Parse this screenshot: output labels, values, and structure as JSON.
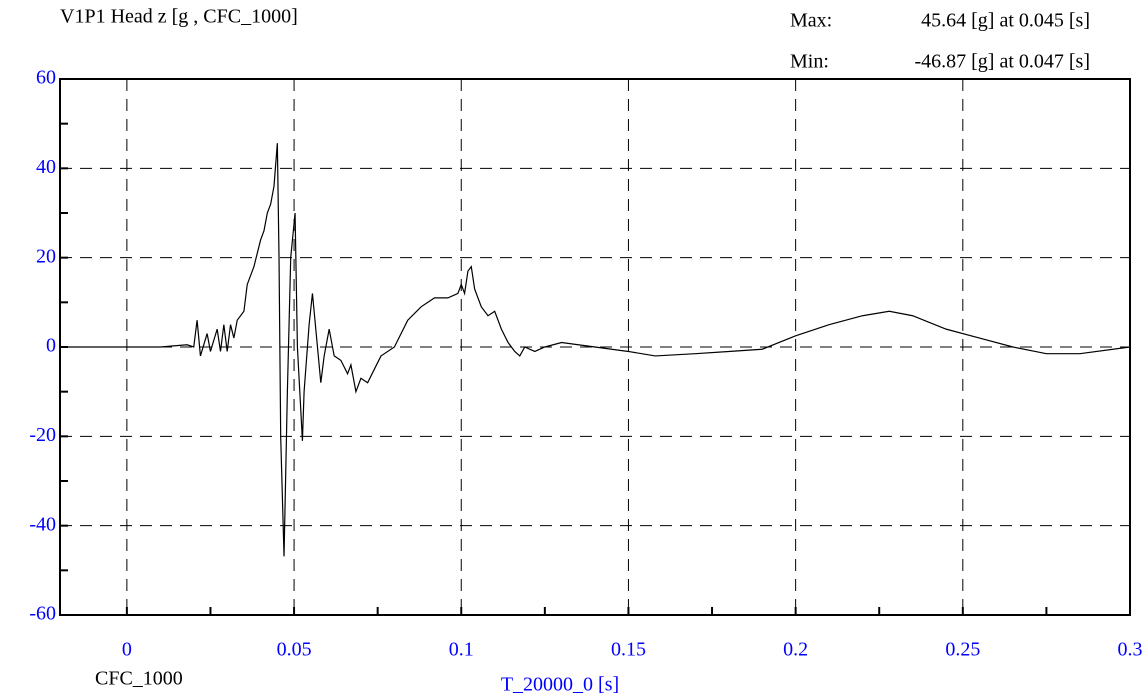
{
  "chart_data": {
    "type": "line",
    "title": "V1P1 Head z [g , CFC_1000]",
    "max_label": "Max:",
    "max_text": "45.64 [g] at 0.045 [s]",
    "min_label": "Min:",
    "min_text": "-46.87 [g] at 0.047 [s]",
    "x_label": "T_20000_0 [s]",
    "filter_label": "CFC_1000",
    "xlim": [
      -0.02,
      0.3
    ],
    "ylim": [
      -60,
      60
    ],
    "xticks": [
      0,
      0.05,
      0.1,
      0.15,
      0.2,
      0.25,
      0.3
    ],
    "yticks": [
      -60,
      -40,
      -20,
      0,
      20,
      40,
      60
    ],
    "grid": true,
    "series": [
      {
        "color": "#000000",
        "x": [
          -0.02,
          0.0,
          0.01,
          0.018,
          0.02,
          0.021,
          0.022,
          0.024,
          0.025,
          0.027,
          0.028,
          0.029,
          0.03,
          0.031,
          0.032,
          0.033,
          0.035,
          0.036,
          0.038,
          0.04,
          0.041,
          0.042,
          0.043,
          0.044,
          0.045,
          0.0455,
          0.046,
          0.047,
          0.048,
          0.049,
          0.0503,
          0.051,
          0.0525,
          0.053,
          0.0545,
          0.0555,
          0.057,
          0.058,
          0.059,
          0.0605,
          0.062,
          0.064,
          0.066,
          0.067,
          0.0685,
          0.07,
          0.072,
          0.074,
          0.076,
          0.08,
          0.084,
          0.088,
          0.092,
          0.096,
          0.099,
          0.1,
          0.101,
          0.102,
          0.103,
          0.104,
          0.106,
          0.108,
          0.11,
          0.112,
          0.114,
          0.116,
          0.1175,
          0.119,
          0.122,
          0.125,
          0.13,
          0.14,
          0.15,
          0.158,
          0.17,
          0.18,
          0.19,
          0.2,
          0.21,
          0.22,
          0.228,
          0.235,
          0.245,
          0.255,
          0.265,
          0.275,
          0.285,
          0.3
        ],
        "values": [
          0,
          0,
          0,
          0.5,
          0,
          6,
          -2,
          3,
          -1,
          4,
          -1,
          5,
          -1,
          5,
          2,
          6,
          8,
          14,
          18,
          24,
          26,
          30,
          32,
          36,
          45.64,
          20,
          -20,
          -46.87,
          -10,
          20,
          30,
          0,
          -21,
          -10,
          5,
          12,
          0,
          -8,
          -2,
          4,
          -2,
          -3,
          -6,
          -4,
          -10,
          -7,
          -8,
          -5,
          -2,
          0,
          6,
          9,
          11,
          11,
          12,
          14,
          12,
          17,
          18,
          13,
          9,
          7,
          8,
          4,
          1,
          -1,
          -2,
          0,
          -1,
          0,
          1,
          0,
          -1,
          -2,
          -1.5,
          -1,
          -0.5,
          2.5,
          5,
          7,
          8,
          7,
          4,
          2,
          0,
          -1.5,
          -1.5,
          0
        ]
      }
    ]
  }
}
